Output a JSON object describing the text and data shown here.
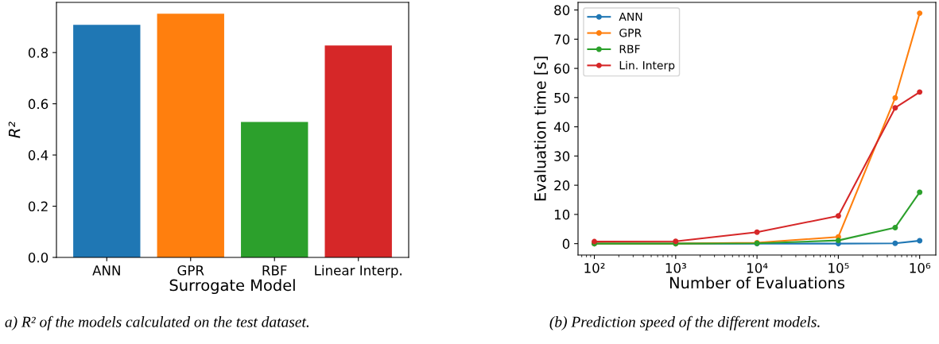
{
  "chart_data": [
    {
      "type": "bar",
      "categories": [
        "ANN",
        "GPR",
        "RBF",
        "Linear Interp."
      ],
      "values": [
        0.908,
        0.952,
        0.529,
        0.828
      ],
      "colors": [
        "#1f77b4",
        "#ff7f0e",
        "#2ca02c",
        "#d62728"
      ],
      "xlabel": "Surrogate Model",
      "ylabel": "R²",
      "ylim": [
        0,
        0.996
      ],
      "yticks": [
        {
          "value": 0,
          "label": "0.0"
        },
        0.2,
        0.4,
        0.6,
        0.8
      ],
      "grid": false,
      "legend": false,
      "annotations": [
        "a) R² of the models calculated on the test dataset."
      ]
    },
    {
      "type": "line",
      "log": "x",
      "x": [
        100,
        1000,
        10000,
        100000,
        500000,
        1000000
      ],
      "xlabel": "Number of Evaluations",
      "ylabel": "Evaluation time [s]",
      "xlim": [
        63,
        1580000
      ],
      "ylim": [
        -3.9,
        82.6
      ],
      "xticks": [
        {
          "value": 100,
          "label": "10²"
        },
        {
          "value": 1000,
          "label": "10³"
        },
        {
          "value": 10000,
          "label": "10⁴"
        },
        {
          "value": 100000,
          "label": "10⁵"
        },
        {
          "value": 1000000,
          "label": "10⁶"
        }
      ],
      "yticks": [
        0,
        10,
        20,
        30,
        40,
        50,
        60,
        70,
        80
      ],
      "grid": false,
      "legend": "top left",
      "marker": "circle",
      "line_style": "solid",
      "series": [
        {
          "name": "ANN",
          "color": "#1f77b4",
          "values": [
            0,
            0,
            0,
            0,
            0.1,
            1.0
          ]
        },
        {
          "name": "GPR",
          "color": "#ff7f0e",
          "values": [
            0,
            0,
            0.3,
            2.3,
            49.9,
            78.9
          ]
        },
        {
          "name": "RBF",
          "color": "#2ca02c",
          "values": [
            0,
            0,
            0.1,
            1.1,
            5.5,
            17.6
          ]
        },
        {
          "name": "Lin. Interp",
          "color": "#d62728",
          "values": [
            0.7,
            0.8,
            3.9,
            9.5,
            46.5,
            51.9
          ]
        }
      ],
      "annotations": [
        "(b) Prediction speed of the different models."
      ]
    }
  ]
}
